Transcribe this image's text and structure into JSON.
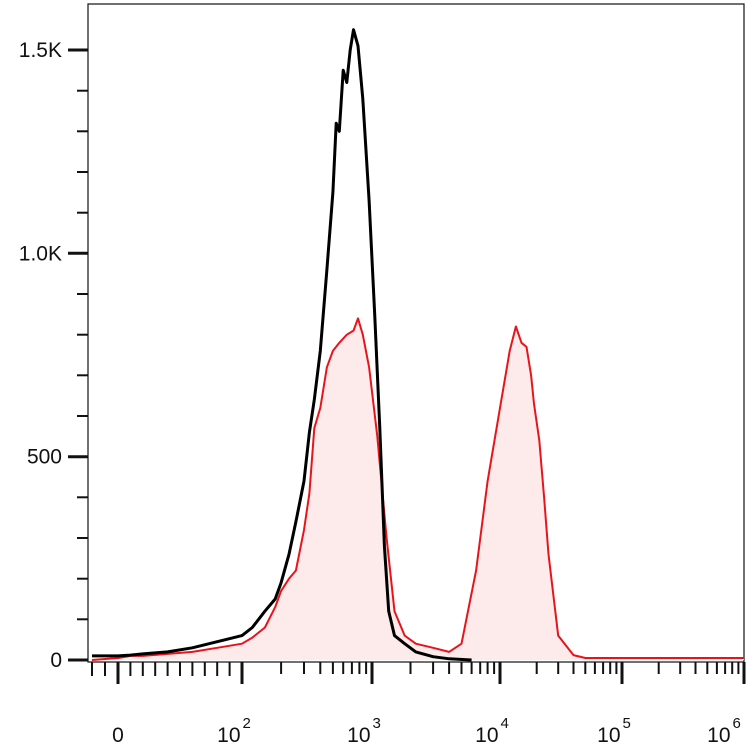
{
  "chart_data": {
    "type": "area",
    "title": "",
    "xlabel": "",
    "ylabel": "",
    "x_scale": "biexponential",
    "xlim": [
      -10,
      1000000
    ],
    "ylim": [
      0,
      1550
    ],
    "grid": false,
    "legend": "none",
    "y_ticks": [
      {
        "value": 0,
        "label": "0"
      },
      {
        "value": 500,
        "label": "500"
      },
      {
        "value": 1000,
        "label": "1.0K"
      },
      {
        "value": 1500,
        "label": "1.5K"
      }
    ],
    "x_ticks": [
      {
        "value": 0,
        "base": "0",
        "exp": ""
      },
      {
        "value": 100,
        "base": "10",
        "exp": "2"
      },
      {
        "value": 1000,
        "base": "10",
        "exp": "3"
      },
      {
        "value": 10000,
        "base": "10",
        "exp": "4"
      },
      {
        "value": 100000,
        "base": "10",
        "exp": "5"
      },
      {
        "value": 1000000,
        "base": "10",
        "exp": "6"
      }
    ],
    "series": [
      {
        "color": "#000000",
        "fill": "none",
        "points": [
          [
            -10,
            10
          ],
          [
            0,
            10
          ],
          [
            10,
            12
          ],
          [
            20,
            15
          ],
          [
            40,
            20
          ],
          [
            60,
            30
          ],
          [
            80,
            45
          ],
          [
            100,
            60
          ],
          [
            120,
            80
          ],
          [
            150,
            120
          ],
          [
            180,
            150
          ],
          [
            200,
            190
          ],
          [
            230,
            260
          ],
          [
            260,
            340
          ],
          [
            300,
            440
          ],
          [
            330,
            560
          ],
          [
            360,
            640
          ],
          [
            400,
            760
          ],
          [
            450,
            960
          ],
          [
            500,
            1150
          ],
          [
            530,
            1320
          ],
          [
            560,
            1300
          ],
          [
            600,
            1450
          ],
          [
            640,
            1420
          ],
          [
            680,
            1500
          ],
          [
            720,
            1550
          ],
          [
            780,
            1510
          ],
          [
            850,
            1380
          ],
          [
            950,
            1130
          ],
          [
            1050,
            850
          ],
          [
            1150,
            570
          ],
          [
            1250,
            280
          ],
          [
            1350,
            120
          ],
          [
            1500,
            60
          ],
          [
            1800,
            40
          ],
          [
            2200,
            20
          ],
          [
            3000,
            8
          ],
          [
            4000,
            3
          ],
          [
            6000,
            0
          ]
        ]
      },
      {
        "color": "#e8141b",
        "fill": "#fdeaea",
        "points": [
          [
            -10,
            0
          ],
          [
            0,
            5
          ],
          [
            10,
            10
          ],
          [
            20,
            10
          ],
          [
            40,
            15
          ],
          [
            60,
            20
          ],
          [
            80,
            30
          ],
          [
            100,
            40
          ],
          [
            120,
            55
          ],
          [
            150,
            80
          ],
          [
            180,
            130
          ],
          [
            200,
            170
          ],
          [
            230,
            200
          ],
          [
            260,
            220
          ],
          [
            300,
            320
          ],
          [
            330,
            410
          ],
          [
            360,
            570
          ],
          [
            400,
            620
          ],
          [
            450,
            720
          ],
          [
            500,
            760
          ],
          [
            560,
            780
          ],
          [
            640,
            800
          ],
          [
            720,
            810
          ],
          [
            780,
            840
          ],
          [
            850,
            800
          ],
          [
            950,
            720
          ],
          [
            1100,
            550
          ],
          [
            1200,
            420
          ],
          [
            1300,
            300
          ],
          [
            1500,
            120
          ],
          [
            1800,
            60
          ],
          [
            2200,
            40
          ],
          [
            3000,
            30
          ],
          [
            4000,
            20
          ],
          [
            5000,
            40
          ],
          [
            6500,
            220
          ],
          [
            8000,
            440
          ],
          [
            10000,
            620
          ],
          [
            12000,
            760
          ],
          [
            13500,
            820
          ],
          [
            15000,
            780
          ],
          [
            16500,
            770
          ],
          [
            18000,
            700
          ],
          [
            19000,
            630
          ],
          [
            21000,
            540
          ],
          [
            23000,
            400
          ],
          [
            25000,
            260
          ],
          [
            30000,
            60
          ],
          [
            40000,
            12
          ],
          [
            50000,
            5
          ],
          [
            100000,
            5
          ],
          [
            1000000,
            5
          ]
        ]
      }
    ]
  }
}
